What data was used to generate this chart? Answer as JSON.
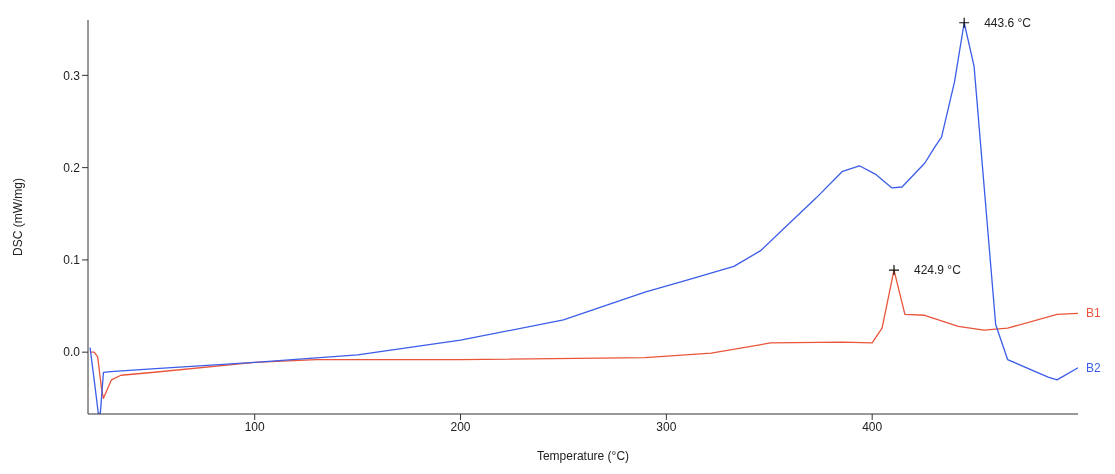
{
  "chart_data": {
    "type": "line",
    "xlabel": "Temperature (°C)",
    "ylabel": "DSC (mW/mg)",
    "xlim": [
      19,
      500
    ],
    "ylim": [
      -0.067,
      0.36
    ],
    "xticks": [
      100,
      200,
      300,
      400
    ],
    "yticks": [
      {
        "value": 0,
        "label": "0.0"
      },
      0.1,
      0.2,
      0.3
    ],
    "series": [
      {
        "name": "B1",
        "color": "#e8553a",
        "x": [
          20,
          22,
          23.7,
          25.6,
          26.5,
          30.4,
          35,
          50,
          100,
          130,
          200,
          289.6,
          321.8,
          350.6,
          385.6,
          400,
          404.8,
          410.6,
          415.9,
          425.5,
          441.8,
          454.3,
          465.8,
          489.8,
          500
        ],
        "values": [
          0,
          0,
          -0.005,
          -0.04,
          -0.05,
          -0.03,
          -0.025,
          -0.022,
          -0.011,
          -0.008,
          -0.008,
          -0.006,
          -0.001,
          0.01,
          0.011,
          0.01,
          0.026,
          0.089,
          0.041,
          0.04,
          0.028,
          0.024,
          0.026,
          0.041,
          0.042
        ]
      },
      {
        "name": "B2",
        "color": "#3b5de7",
        "x": [
          20,
          22,
          24,
          25,
          26.5,
          30,
          50,
          100,
          150,
          200,
          250,
          289.6,
          310,
          332.8,
          345.8,
          358,
          372.7,
          385.6,
          393.8,
          401.5,
          409.6,
          414.5,
          425.6,
          430.3,
          433.7,
          440,
          444.7,
          449.5,
          452.8,
          455.5,
          460,
          465.8,
          485.5,
          489.8,
          500
        ],
        "values": [
          0.005,
          -0.03,
          -0.066,
          -0.066,
          -0.022,
          -0.021,
          -0.018,
          -0.011,
          -0.003,
          0.013,
          0.035,
          0.065,
          0.078,
          0.093,
          0.11,
          0.136,
          0.167,
          0.196,
          0.202,
          0.193,
          0.178,
          0.179,
          0.205,
          0.222,
          0.233,
          0.293,
          0.357,
          0.31,
          0.222,
          0.15,
          0.03,
          -0.008,
          -0.027,
          -0.03,
          -0.017
        ]
      }
    ],
    "annotations": [
      {
        "text": "443.6 °C",
        "x": 444.7,
        "y": 0.357
      },
      {
        "text": "424.9 °C",
        "x": 410.6,
        "y": 0.089
      }
    ]
  }
}
